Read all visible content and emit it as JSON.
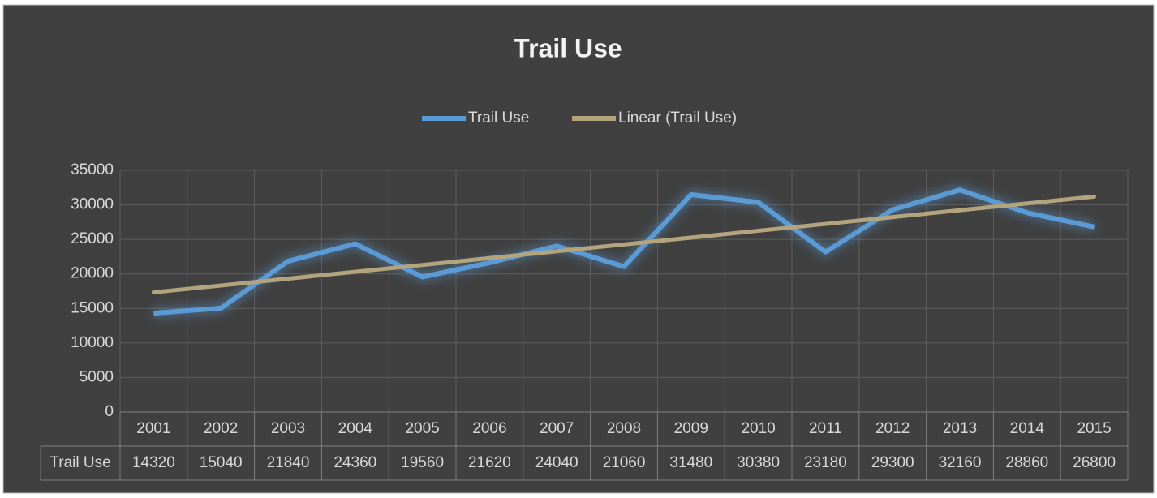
{
  "chart_data": {
    "type": "line",
    "title": "Trail Use",
    "categories": [
      "2001",
      "2002",
      "2003",
      "2004",
      "2005",
      "2006",
      "2007",
      "2008",
      "2009",
      "2010",
      "2011",
      "2012",
      "2013",
      "2014",
      "2015"
    ],
    "series": [
      {
        "name": "Trail Use",
        "color": "#5b9bd5",
        "values": [
          14320,
          15040,
          21840,
          24360,
          19560,
          21620,
          24040,
          21060,
          31480,
          30380,
          23180,
          29300,
          32160,
          28860,
          26800
        ]
      }
    ],
    "trendline": {
      "name": "Linear (Trail Use)",
      "type": "linear",
      "color": "#b3a47e"
    },
    "ylim": [
      0,
      35000
    ],
    "yticks": [
      0,
      5000,
      10000,
      15000,
      20000,
      25000,
      30000,
      35000
    ],
    "grid": true,
    "legend": "top",
    "data_table": true
  }
}
